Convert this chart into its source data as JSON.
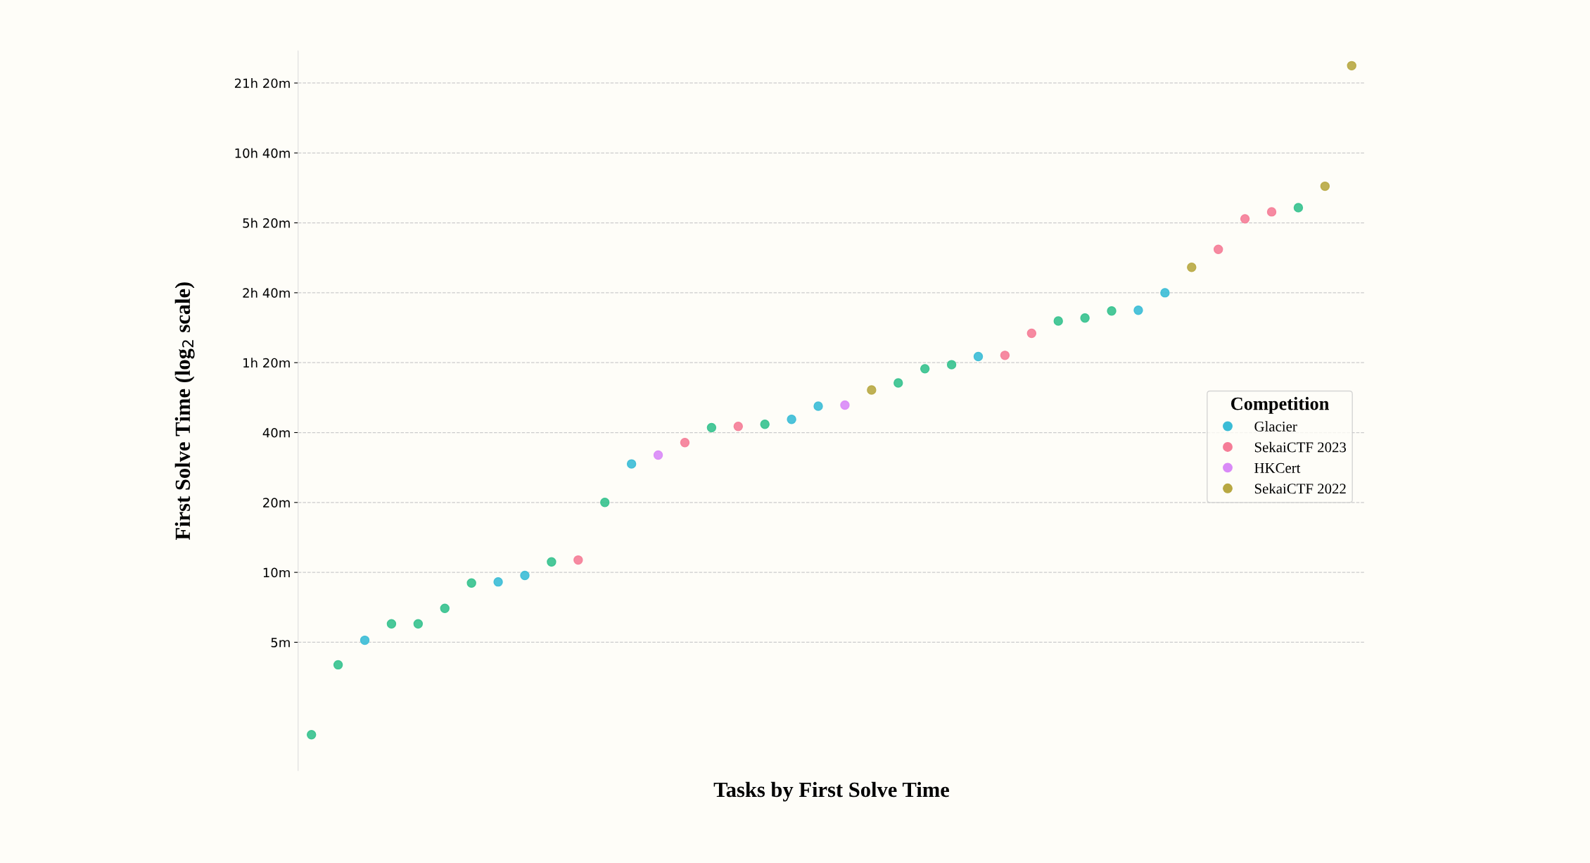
{
  "chart_data": {
    "type": "scatter",
    "xlabel": "Tasks by First Solve Time",
    "ylabel": "First Solve Time (log$_{2}$ scale)",
    "legend_title": "Competition",
    "legend": "right",
    "grid": "y",
    "line_style": "dashed",
    "marker": "circle",
    "log": "y",
    "categories": [
      null,
      null,
      null,
      null,
      null,
      null,
      null,
      null,
      null,
      null,
      null,
      null,
      null,
      null,
      null,
      null,
      null,
      null,
      null,
      null,
      null,
      null,
      null,
      null,
      null,
      null,
      null,
      null,
      null,
      null,
      null,
      null,
      null,
      null,
      null,
      null,
      null,
      null,
      null,
      null
    ],
    "ylim": [
      1.4,
      1760
    ],
    "yticks": [
      {
        "value": 5,
        "label": "5m"
      },
      {
        "value": 10,
        "label": "10m"
      },
      {
        "value": 20,
        "label": "20m"
      },
      {
        "value": 40,
        "label": "40m"
      },
      {
        "value": 80,
        "label": "1h 20m"
      },
      {
        "value": 160,
        "label": "2h 40m"
      },
      {
        "value": 320,
        "label": "5h 20m"
      },
      {
        "value": 640,
        "label": "10h 40m"
      },
      {
        "value": 1280,
        "label": "21h 20m"
      }
    ],
    "series": [
      {
        "color": "#36c28e",
        "values": [
          2.0,
          4.0,
          null,
          6.0,
          6.0,
          7.0,
          9.0,
          null,
          null,
          11.1,
          null,
          20,
          null,
          null,
          null,
          42,
          null,
          43.4,
          null,
          null,
          null,
          null,
          65.4,
          75.3,
          78.4,
          null,
          null,
          null,
          121,
          124.5,
          133.5,
          null,
          null,
          null,
          null,
          null,
          null,
          372,
          null,
          null
        ]
      },
      {
        "name": "Glacier",
        "color": "#3bbcd6",
        "values": [
          null,
          null,
          5.1,
          null,
          null,
          null,
          null,
          9.1,
          9.7,
          null,
          null,
          null,
          29.3,
          null,
          null,
          null,
          null,
          null,
          45.6,
          52,
          null,
          null,
          null,
          null,
          null,
          85,
          null,
          null,
          null,
          null,
          null,
          134.5,
          160,
          null,
          null,
          null,
          null,
          null,
          null,
          null
        ]
      },
      {
        "name": "SekaiCTF 2023",
        "color": "#f57d97",
        "values": [
          null,
          null,
          null,
          null,
          null,
          null,
          null,
          null,
          null,
          null,
          11.3,
          null,
          null,
          null,
          36.2,
          null,
          42.5,
          null,
          null,
          null,
          null,
          null,
          null,
          null,
          null,
          null,
          86,
          107,
          null,
          null,
          null,
          null,
          null,
          null,
          246,
          333,
          357,
          null,
          null,
          null
        ]
      },
      {
        "name": "HKCert",
        "color": "#d98af7",
        "values": [
          null,
          null,
          null,
          null,
          null,
          null,
          null,
          null,
          null,
          null,
          null,
          null,
          null,
          32,
          null,
          null,
          null,
          null,
          null,
          null,
          52.5,
          null,
          null,
          null,
          null,
          null,
          null,
          null,
          null,
          null,
          null,
          null,
          null,
          null,
          null,
          null,
          null,
          null,
          null,
          null
        ]
      },
      {
        "name": "SekaiCTF 2022",
        "color": "#b8a842",
        "values": [
          null,
          null,
          null,
          null,
          null,
          null,
          null,
          null,
          null,
          null,
          null,
          null,
          null,
          null,
          null,
          null,
          null,
          null,
          null,
          null,
          null,
          61,
          null,
          null,
          null,
          null,
          null,
          null,
          null,
          null,
          null,
          null,
          null,
          206,
          null,
          null,
          null,
          null,
          460,
          1520
        ]
      }
    ]
  }
}
